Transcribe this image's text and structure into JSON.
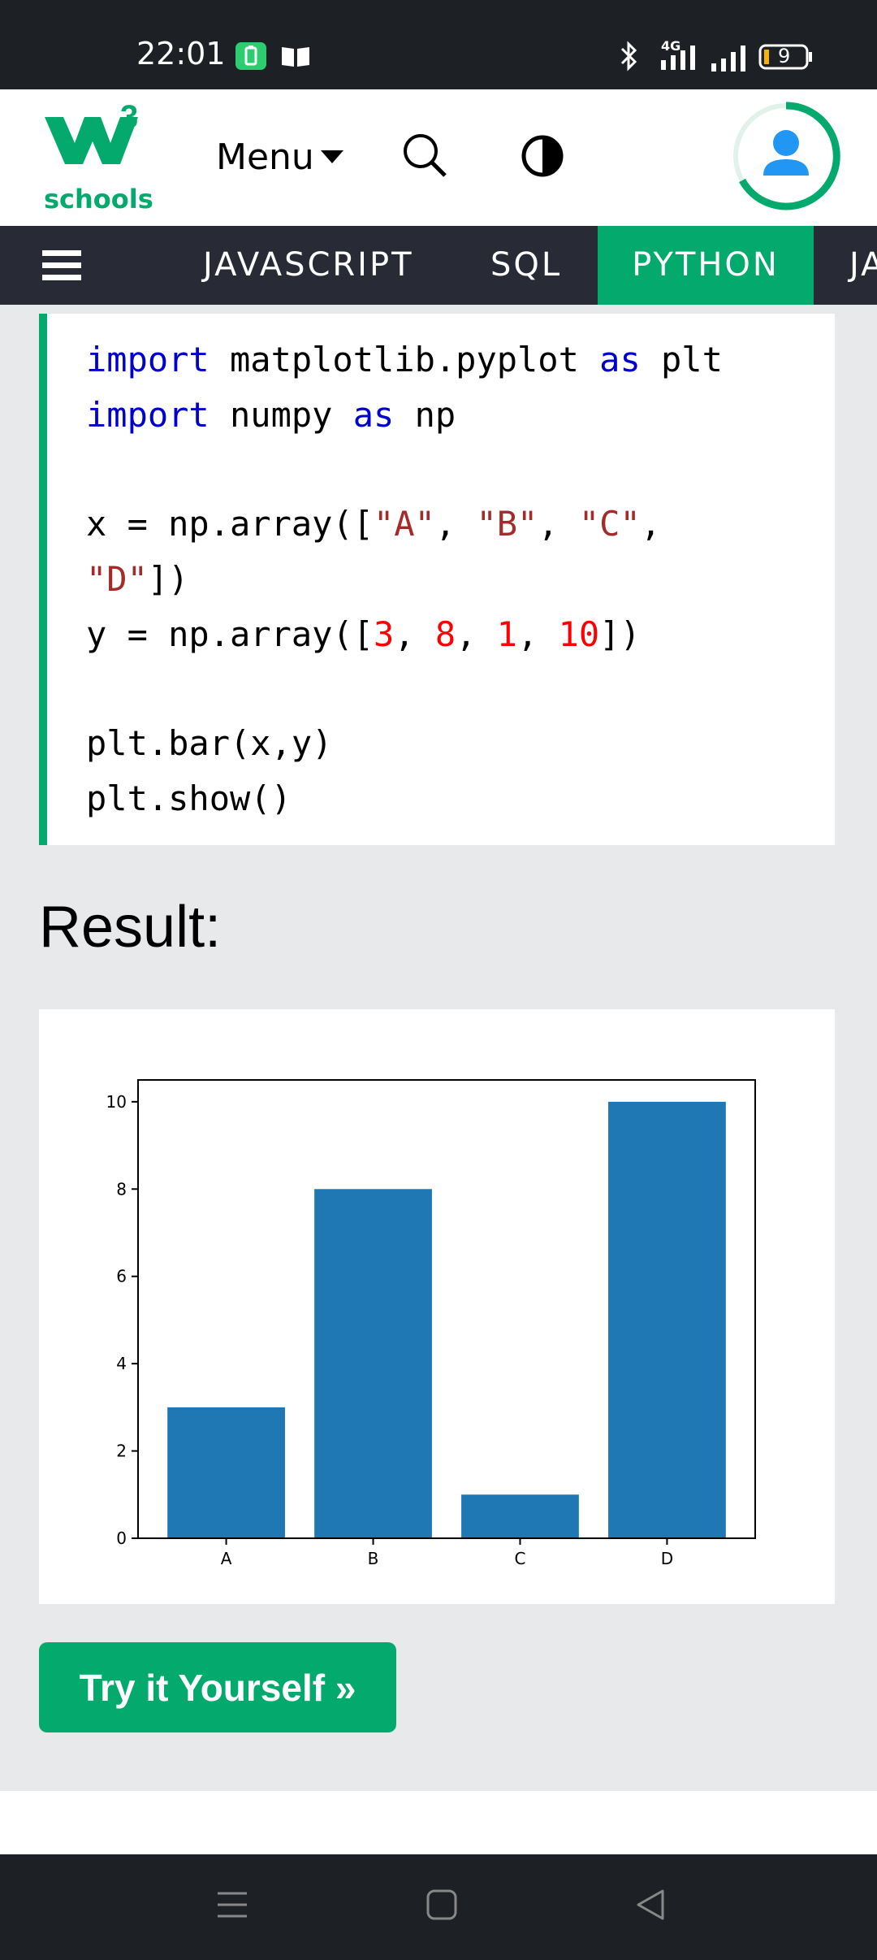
{
  "status_bar": {
    "time": "22:01",
    "network": "4G",
    "battery": "9"
  },
  "header": {
    "logo_text": "schools",
    "logo_superscript": "3",
    "menu_label": "Menu"
  },
  "nav": {
    "items": [
      "JAVASCRIPT",
      "SQL",
      "PYTHON",
      "JA"
    ],
    "active": "PYTHON"
  },
  "code": {
    "l1": {
      "kw1": "import",
      "t1": " matplotlib.pyplot ",
      "kw2": "as",
      "t2": " plt"
    },
    "l2": {
      "kw1": "import",
      "t1": " numpy ",
      "kw2": "as",
      "t2": " np"
    },
    "l3": {
      "t1": "x = np.array([",
      "s1": "\"A\"",
      "t2": ", ",
      "s2": "\"B\"",
      "t3": ", ",
      "s3": "\"C\"",
      "t4": ","
    },
    "l4": {
      "s1": "\"D\"",
      "t1": "])"
    },
    "l5": {
      "t1": "y = np.array([",
      "n1": "3",
      "t2": ", ",
      "n2": "8",
      "t3": ", ",
      "n3": "1",
      "t4": ", ",
      "n4": "10",
      "t5": "])"
    },
    "l6": {
      "t1": "plt.bar(x,y)"
    },
    "l7": {
      "t1": "plt.show()"
    }
  },
  "result_heading": "Result:",
  "chart_data": {
    "type": "bar",
    "categories": [
      "A",
      "B",
      "C",
      "D"
    ],
    "values": [
      3,
      8,
      1,
      10
    ],
    "yticks": [
      "0",
      "2",
      "4",
      "6",
      "8",
      "10"
    ],
    "ylim": [
      0,
      10.5
    ],
    "bar_color": "#1f77b4",
    "grid": false,
    "title": "",
    "xlabel": "",
    "ylabel": ""
  },
  "try_button": "Try it Yourself »",
  "colors": {
    "accent": "#04aa6d",
    "nav_bg": "#282a35",
    "keyword": "#0000cd",
    "string": "#a52a2a",
    "number": "#ff0000"
  }
}
